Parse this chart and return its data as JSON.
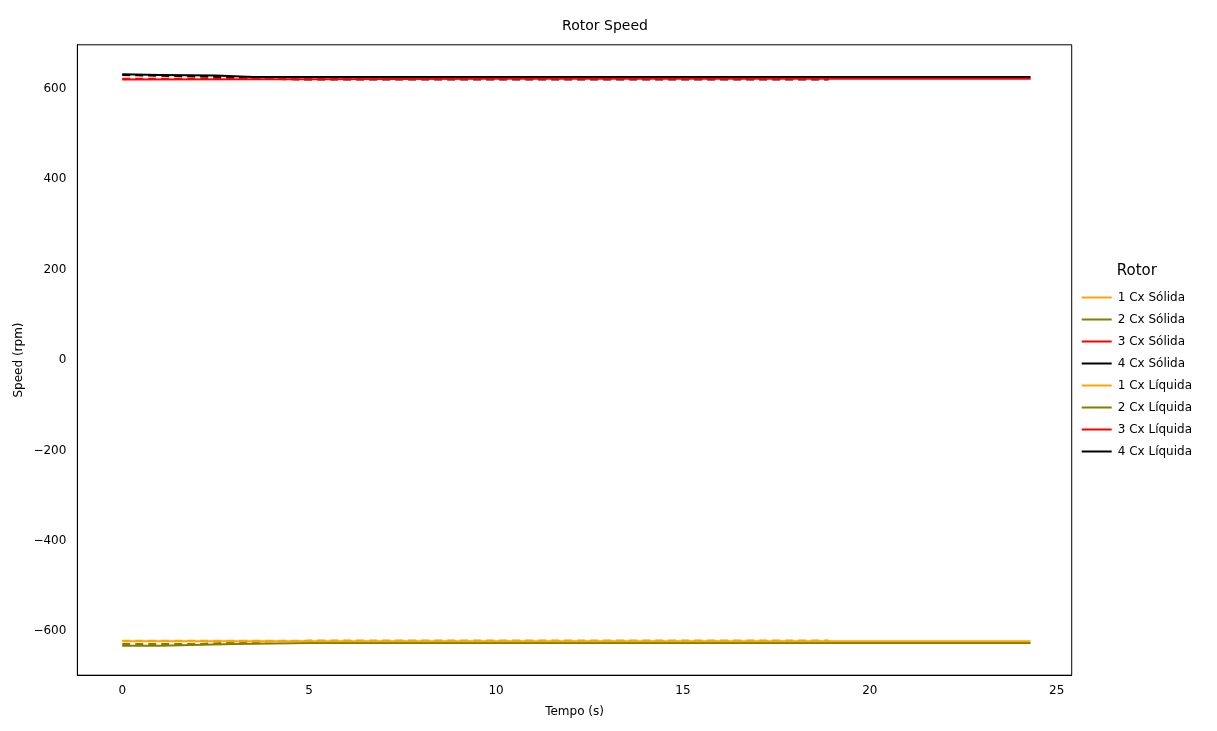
{
  "chart_data": {
    "type": "line",
    "title": "Rotor Speed",
    "xlabel": "Tempo (s)",
    "ylabel": "Speed (rpm)",
    "legend_title": "Rotor",
    "legend": "right",
    "grid": false,
    "marker": "none",
    "xlim": [
      -1.2,
      25.4
    ],
    "xticks": [
      0,
      5,
      10,
      15,
      20,
      25
    ],
    "ylim": [
      -697,
      697
    ],
    "yticks": [
      {
        "value": -600,
        "label": "−600"
      },
      {
        "value": -400,
        "label": "−400"
      },
      {
        "value": -200,
        "label": "−200"
      },
      0,
      200,
      400,
      600
    ],
    "series": [
      {
        "name": "1 Cx Sólida",
        "color": "#ffa500",
        "line_style": "solid",
        "x": [
          0,
          5,
          10,
          15,
          20,
          24.3
        ],
        "values": [
          -622,
          -622,
          -622,
          -622,
          -622,
          -622
        ]
      },
      {
        "name": "2 Cx Sólida",
        "color": "#808000",
        "line_style": "solid",
        "x": [
          0,
          1,
          3,
          5,
          10,
          15,
          20,
          24.3
        ],
        "values": [
          -632,
          -632,
          -628,
          -626,
          -626,
          -626,
          -626,
          -626
        ]
      },
      {
        "name": "3 Cx Sólida",
        "color": "#ff0000",
        "line_style": "solid",
        "x": [
          0,
          5,
          10,
          15,
          20,
          24.3
        ],
        "values": [
          620,
          621,
          622,
          622,
          622,
          622
        ]
      },
      {
        "name": "4 Cx Sólida",
        "color": "#000000",
        "line_style": "solid",
        "x": [
          0,
          1,
          2.5,
          3.5,
          10,
          15,
          20,
          24.3
        ],
        "values": [
          632,
          630,
          629,
          626,
          626,
          626,
          626,
          626
        ]
      },
      {
        "name": "1 Cx Líquida",
        "color": "#ffa500",
        "line_style": "dashed",
        "x": [
          0,
          5,
          10,
          15,
          18.9
        ],
        "values": [
          -621,
          -621,
          -621,
          -621,
          -621
        ]
      },
      {
        "name": "2 Cx Líquida",
        "color": "#808000",
        "line_style": "dashed",
        "x": [
          0,
          2,
          4,
          5,
          10,
          15,
          18.9
        ],
        "values": [
          -628,
          -628,
          -622,
          -621,
          -621,
          -621,
          -621
        ]
      },
      {
        "name": "3 Cx Líquida",
        "color": "#ff0000",
        "line_style": "dashed",
        "x": [
          0,
          3,
          10,
          15,
          18.9
        ],
        "values": [
          622,
          622,
          622,
          622,
          622
        ]
      },
      {
        "name": "4 Cx Líquida",
        "color": "#000000",
        "line_style": "dashed",
        "x": [
          0,
          2.5,
          3.5,
          5,
          10,
          15,
          18.9
        ],
        "values": [
          630,
          626,
          622,
          620,
          620,
          620,
          620
        ]
      }
    ]
  }
}
